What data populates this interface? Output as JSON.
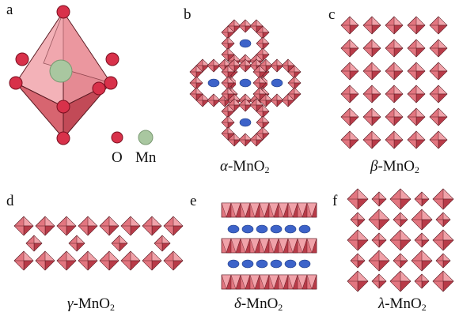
{
  "panels": [
    {
      "id": "a",
      "label": "a"
    },
    {
      "id": "b",
      "label": "b",
      "greek": "α",
      "formula": "-MnO",
      "sub": "2"
    },
    {
      "id": "c",
      "label": "c",
      "greek": "β",
      "formula": "-MnO",
      "sub": "2"
    },
    {
      "id": "d",
      "label": "d",
      "greek": "γ",
      "formula": "-MnO",
      "sub": "2"
    },
    {
      "id": "e",
      "label": "e",
      "greek": "δ",
      "formula": "-MnO",
      "sub": "2"
    },
    {
      "id": "f",
      "label": "f",
      "greek": "λ",
      "formula": "-MnO",
      "sub": "2"
    }
  ],
  "legend": {
    "o": "O",
    "mn": "Mn"
  },
  "colors": {
    "octa_light": "#f0a2a9",
    "octa_mid": "#e27680",
    "octa_dark": "#b83b48",
    "edge": "#5a1a22",
    "oxygen": "#d8314a",
    "manganese": "#a9c7a0",
    "cation": "#3d63c9"
  }
}
